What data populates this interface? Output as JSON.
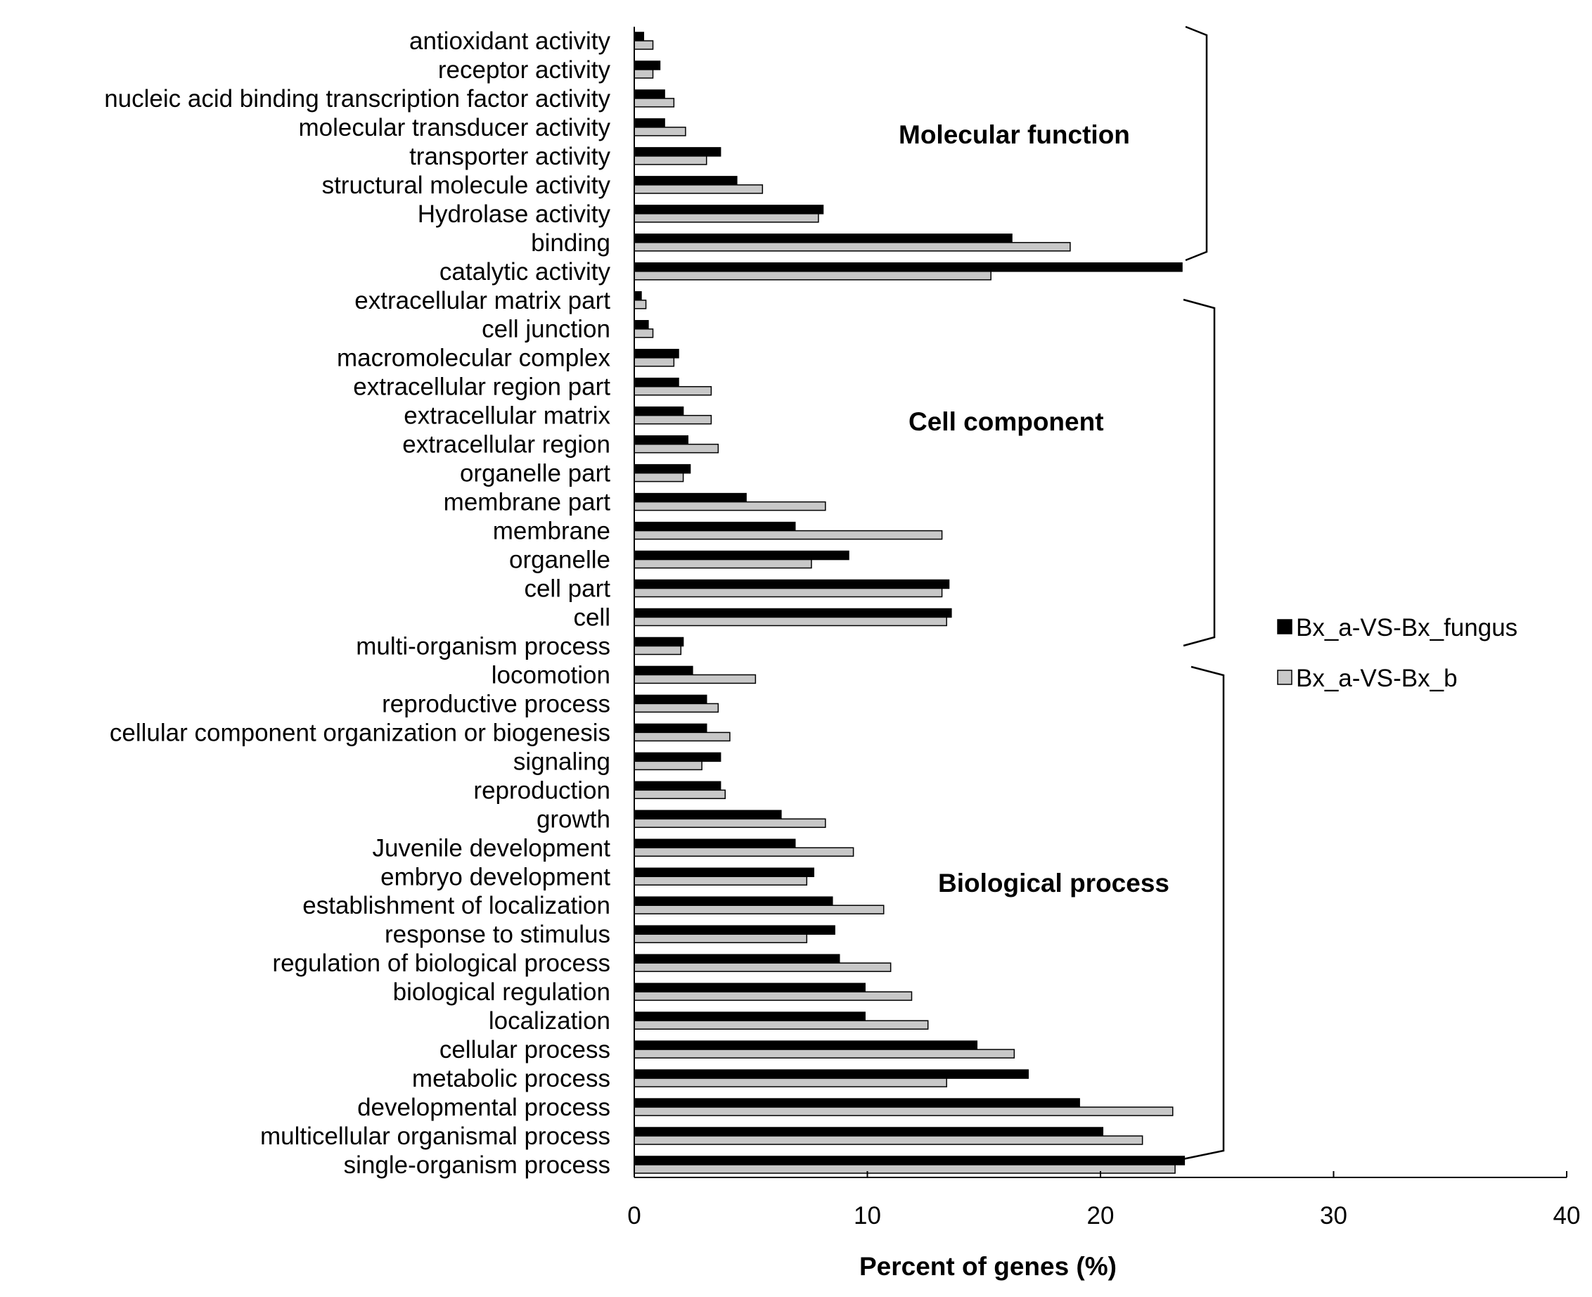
{
  "chart_data": {
    "type": "bar",
    "orientation": "horizontal",
    "title": "",
    "xlabel": "Percent of genes (%)",
    "ylabel": "",
    "xlim": [
      0,
      40
    ],
    "xticks": [
      0,
      10,
      20,
      30,
      40
    ],
    "grid": false,
    "legend_position": "right",
    "categories": [
      "antioxidant activity",
      "receptor activity",
      "nucleic acid binding transcription factor activity",
      "molecular transducer activity",
      "transporter activity",
      "structural molecule activity",
      "Hydrolase activity",
      "binding",
      "catalytic activity",
      "extracellular matrix part",
      "cell junction",
      "macromolecular complex",
      "extracellular region part",
      "extracellular matrix",
      "extracellular region",
      "organelle part",
      "membrane part",
      "membrane",
      "organelle",
      "cell part",
      "cell",
      "multi-organism process",
      "locomotion",
      "reproductive process",
      "cellular component organization or biogenesis",
      "signaling",
      "reproduction",
      "growth",
      "Juvenile development",
      "embryo development",
      "establishment of localization",
      "response to stimulus",
      "regulation of biological process",
      "biological regulation",
      "localization",
      "cellular process",
      "metabolic process",
      "developmental process",
      "multicellular organismal process",
      "single-organism process"
    ],
    "series": [
      {
        "name": "Bx_a-VS-Bx_fungus",
        "color": "#000000",
        "values": [
          0.4,
          1.1,
          1.3,
          1.3,
          3.7,
          4.4,
          8.1,
          16.2,
          23.5,
          0.3,
          0.6,
          1.9,
          1.9,
          2.1,
          2.3,
          2.4,
          4.8,
          6.9,
          9.2,
          13.5,
          13.6,
          2.1,
          2.5,
          3.1,
          3.1,
          3.7,
          3.7,
          6.3,
          6.9,
          7.7,
          8.5,
          8.6,
          8.8,
          9.9,
          9.9,
          14.7,
          16.9,
          19.1,
          20.1,
          23.6
        ]
      },
      {
        "name": "Bx_a-VS-Bx_b",
        "color": "#c8c8c8",
        "values": [
          0.8,
          0.8,
          1.7,
          2.2,
          3.1,
          5.5,
          7.9,
          18.7,
          15.3,
          0.5,
          0.8,
          1.7,
          3.3,
          3.3,
          3.6,
          2.1,
          8.2,
          13.2,
          7.6,
          13.2,
          13.4,
          2.0,
          5.2,
          3.6,
          4.1,
          2.9,
          3.9,
          8.2,
          9.4,
          7.4,
          10.7,
          7.4,
          11.0,
          11.9,
          12.6,
          16.3,
          13.4,
          23.1,
          21.8,
          23.2
        ]
      }
    ],
    "groups": [
      {
        "label": "Molecular function",
        "first": 0,
        "last": 8
      },
      {
        "label": "Cell component",
        "first": 9,
        "last": 21
      },
      {
        "label": "Biological process",
        "first": 22,
        "last": 39
      }
    ]
  }
}
